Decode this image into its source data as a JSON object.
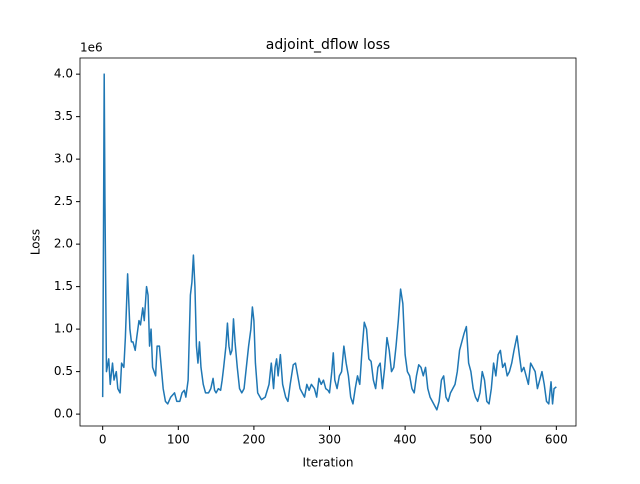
{
  "chart_data": {
    "type": "line",
    "title": "adjoint_dflow loss",
    "xlabel": "Iteration",
    "ylabel": "Loss",
    "offset_label": "1e6",
    "xlim": [
      -30,
      626
    ],
    "ylim": [
      -0.14,
      4.19
    ],
    "xticks": [
      0,
      100,
      200,
      300,
      400,
      500,
      600
    ],
    "yticks": [
      {
        "value": 0,
        "label": "0.0"
      },
      {
        "value": 0.5,
        "label": "0.5"
      },
      {
        "value": 1,
        "label": "1.0"
      },
      {
        "value": 1.5,
        "label": "1.5"
      },
      {
        "value": 2,
        "label": "2.0"
      },
      {
        "value": 2.5,
        "label": "2.5"
      },
      {
        "value": 3,
        "label": "3.0"
      },
      {
        "value": 3.5,
        "label": "3.5"
      },
      {
        "value": 4,
        "label": "4.0"
      }
    ],
    "grid": false,
    "series": [
      {
        "color": "#1f77b4",
        "x": [
          0,
          1,
          2,
          3,
          5,
          8,
          10,
          13,
          15,
          18,
          20,
          23,
          25,
          28,
          30,
          33,
          36,
          38,
          40,
          43,
          45,
          48,
          50,
          53,
          55,
          58,
          60,
          62,
          64,
          66,
          68,
          70,
          72,
          75,
          78,
          80,
          83,
          86,
          90,
          95,
          98,
          102,
          105,
          108,
          110,
          113,
          116,
          118,
          120,
          122,
          124,
          126,
          128,
          130,
          133,
          136,
          140,
          143,
          146,
          148,
          150,
          153,
          156,
          158,
          160,
          163,
          165,
          167,
          169,
          171,
          173,
          175,
          178,
          181,
          184,
          187,
          190,
          193,
          196,
          198,
          200,
          202,
          205,
          210,
          215,
          220,
          223,
          226,
          228,
          230,
          232,
          235,
          238,
          242,
          245,
          248,
          252,
          255,
          258,
          261,
          264,
          267,
          270,
          273,
          276,
          280,
          283,
          286,
          289,
          292,
          295,
          298,
          300,
          303,
          305,
          307,
          310,
          313,
          316,
          319,
          322,
          325,
          328,
          331,
          334,
          337,
          340,
          343,
          346,
          349,
          352,
          355,
          358,
          361,
          364,
          367,
          370,
          373,
          376,
          379,
          382,
          385,
          388,
          391,
          394,
          397,
          400,
          403,
          406,
          409,
          412,
          415,
          418,
          421,
          424,
          427,
          430,
          433,
          436,
          439,
          442,
          445,
          448,
          451,
          454,
          457,
          460,
          463,
          466,
          469,
          472,
          475,
          478,
          481,
          484,
          487,
          490,
          493,
          496,
          499,
          502,
          505,
          508,
          511,
          514,
          517,
          520,
          523,
          526,
          529,
          532,
          535,
          538,
          541,
          544,
          548,
          551,
          554,
          557,
          560,
          563,
          566,
          569,
          572,
          575,
          578,
          581,
          584,
          587,
          590,
          593,
          595,
          597,
          600
        ],
        "values": [
          0.2,
          2.0,
          4.0,
          2.5,
          0.5,
          0.65,
          0.35,
          0.6,
          0.4,
          0.5,
          0.3,
          0.25,
          0.6,
          0.55,
          0.9,
          1.65,
          1.0,
          0.85,
          0.85,
          0.75,
          0.9,
          1.1,
          1.05,
          1.25,
          1.1,
          1.5,
          1.4,
          0.8,
          1.0,
          0.55,
          0.5,
          0.45,
          0.8,
          0.8,
          0.5,
          0.3,
          0.15,
          0.12,
          0.2,
          0.25,
          0.15,
          0.15,
          0.25,
          0.28,
          0.2,
          0.4,
          1.4,
          1.55,
          1.87,
          1.5,
          0.8,
          0.6,
          0.85,
          0.55,
          0.35,
          0.25,
          0.25,
          0.3,
          0.42,
          0.28,
          0.25,
          0.3,
          0.28,
          0.4,
          0.55,
          0.8,
          1.07,
          0.8,
          0.7,
          0.75,
          1.12,
          0.85,
          0.55,
          0.3,
          0.25,
          0.3,
          0.55,
          0.8,
          1.0,
          1.26,
          1.1,
          0.6,
          0.25,
          0.17,
          0.2,
          0.35,
          0.6,
          0.3,
          0.55,
          0.65,
          0.45,
          0.7,
          0.35,
          0.2,
          0.15,
          0.35,
          0.58,
          0.6,
          0.45,
          0.3,
          0.25,
          0.2,
          0.35,
          0.28,
          0.35,
          0.3,
          0.2,
          0.42,
          0.35,
          0.4,
          0.3,
          0.28,
          0.25,
          0.5,
          0.72,
          0.4,
          0.3,
          0.45,
          0.5,
          0.8,
          0.6,
          0.45,
          0.2,
          0.12,
          0.3,
          0.45,
          0.35,
          0.75,
          1.08,
          1.0,
          0.65,
          0.62,
          0.4,
          0.3,
          0.55,
          0.6,
          0.3,
          0.55,
          0.9,
          0.75,
          0.5,
          0.55,
          0.8,
          1.1,
          1.47,
          1.3,
          0.7,
          0.5,
          0.45,
          0.3,
          0.25,
          0.45,
          0.58,
          0.55,
          0.45,
          0.55,
          0.3,
          0.2,
          0.15,
          0.1,
          0.05,
          0.15,
          0.4,
          0.45,
          0.2,
          0.15,
          0.25,
          0.3,
          0.35,
          0.5,
          0.75,
          0.85,
          0.95,
          1.03,
          0.6,
          0.5,
          0.3,
          0.2,
          0.15,
          0.25,
          0.5,
          0.4,
          0.15,
          0.12,
          0.3,
          0.6,
          0.45,
          0.7,
          0.75,
          0.55,
          0.6,
          0.45,
          0.5,
          0.6,
          0.75,
          0.92,
          0.7,
          0.5,
          0.55,
          0.45,
          0.35,
          0.6,
          0.55,
          0.5,
          0.3,
          0.4,
          0.5,
          0.35,
          0.15,
          0.12,
          0.38,
          0.12,
          0.3,
          0.32
        ]
      }
    ]
  }
}
